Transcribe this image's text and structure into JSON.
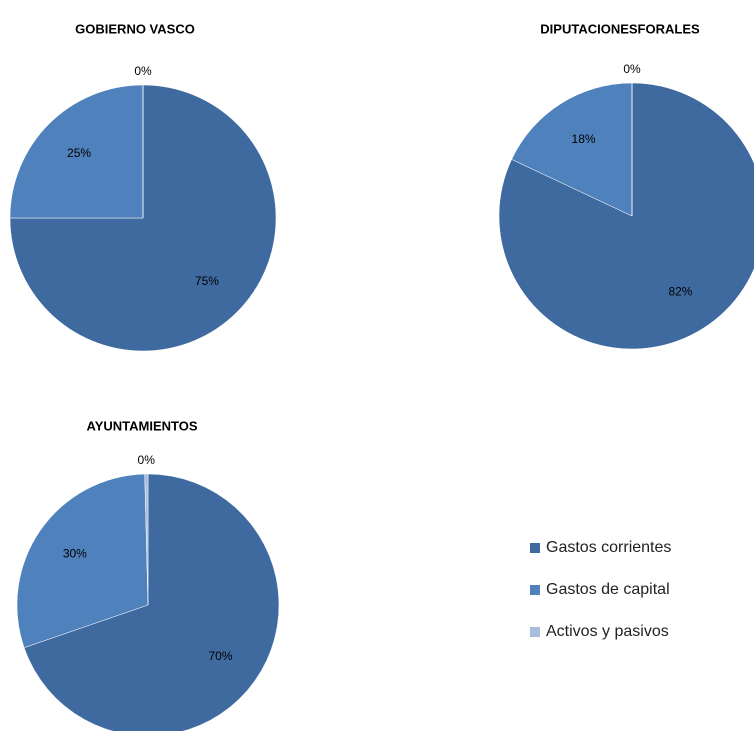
{
  "legend": {
    "categories": [
      "Gastos corrientes",
      "Gastos de capital",
      "Activos y pasivos"
    ],
    "colors": [
      "#3e6aa0",
      "#4f81bd",
      "#a9bcdd"
    ]
  },
  "chart_data": [
    {
      "type": "pie",
      "title": "GOBIERNO VASCO",
      "values": [
        75,
        25,
        0
      ],
      "value_labels": [
        "75%",
        "25%",
        "0%"
      ]
    },
    {
      "type": "pie",
      "title": "DIPUTACIONESFORALES",
      "values": [
        82,
        18,
        0
      ],
      "value_labels": [
        "82%",
        "18%",
        "0%"
      ]
    },
    {
      "type": "pie",
      "title": "AYUNTAMIENTOS",
      "values": [
        70,
        30,
        0.4
      ],
      "value_labels": [
        "70%",
        "30%",
        "0%"
      ]
    }
  ]
}
